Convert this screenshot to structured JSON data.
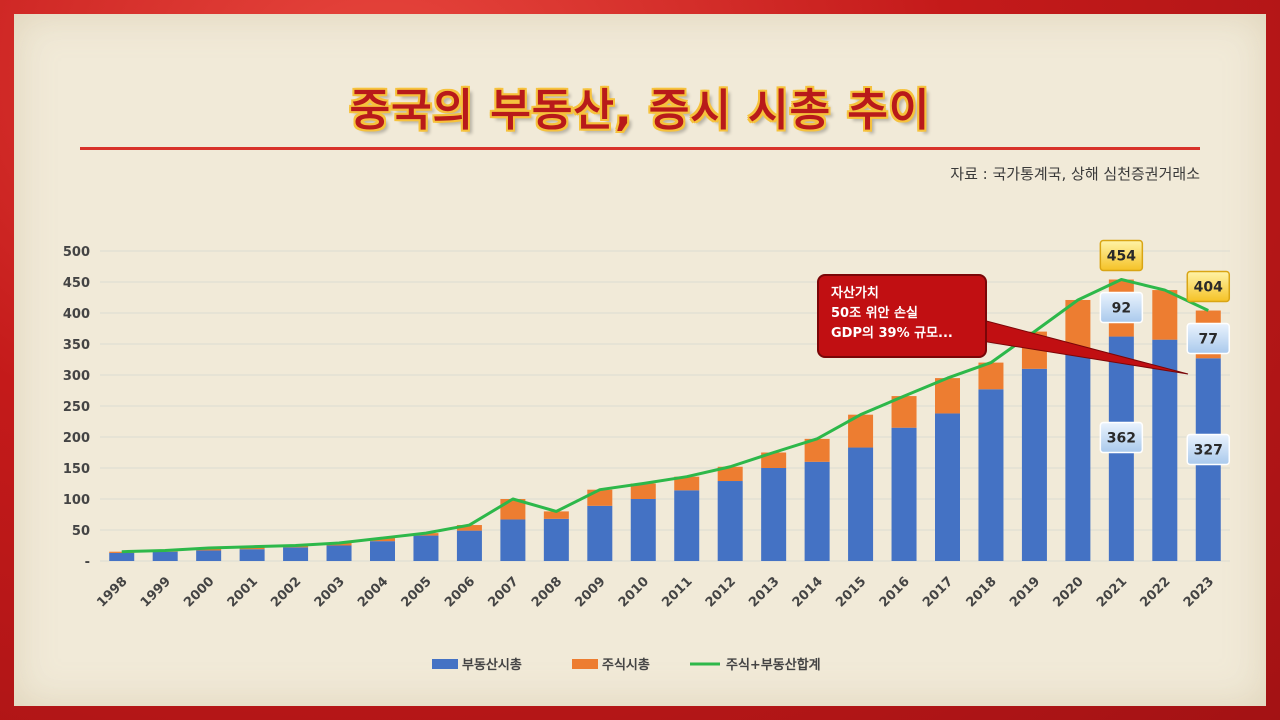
{
  "title": "중국의 부동산, 증시 시총 추이",
  "source": "자료 : 국가통계국, 상해 심천증권거래소",
  "callout": {
    "lines": [
      "자산가치",
      "50조 위안 손실",
      "GDP의 39% 규모..."
    ]
  },
  "colors": {
    "real_estate": "#4472c4",
    "stock": "#ed7d31",
    "total": "#2db84a",
    "frame": "#c8201e",
    "title": "#b81a1a"
  },
  "chart_data": {
    "type": "bar",
    "stacked": true,
    "categories": [
      "1998",
      "1999",
      "2000",
      "2001",
      "2002",
      "2003",
      "2004",
      "2005",
      "2006",
      "2007",
      "2008",
      "2009",
      "2010",
      "2011",
      "2012",
      "2013",
      "2014",
      "2015",
      "2016",
      "2017",
      "2018",
      "2019",
      "2020",
      "2021",
      "2022",
      "2023"
    ],
    "series": [
      {
        "name": "부동산시총",
        "kind": "bar",
        "values": [
          13,
          15,
          17,
          19,
          22,
          25,
          32,
          41,
          49,
          67,
          68,
          89,
          100,
          114,
          129,
          150,
          160,
          183,
          215,
          238,
          277,
          310,
          342,
          362,
          357,
          327
        ]
      },
      {
        "name": "주식시총",
        "kind": "bar",
        "values": [
          2,
          2,
          4,
          4,
          3,
          4,
          5,
          4,
          9,
          33,
          12,
          26,
          25,
          22,
          23,
          25,
          37,
          53,
          51,
          57,
          43,
          60,
          79,
          92,
          80,
          77
        ]
      },
      {
        "name": "주식+부동산합계",
        "kind": "line",
        "values": [
          15,
          17,
          21,
          23,
          25,
          29,
          37,
          45,
          58,
          100,
          80,
          115,
          125,
          136,
          152,
          175,
          197,
          236,
          266,
          295,
          320,
          370,
          421,
          454,
          437,
          404
        ]
      }
    ],
    "y_ticks": [
      "-",
      "50",
      "100",
      "150",
      "200",
      "250",
      "300",
      "350",
      "400",
      "450",
      "500"
    ],
    "ylim": [
      0,
      500
    ],
    "grid": true,
    "legend_position": "bottom",
    "data_labels": [
      {
        "category": "2021",
        "series": "주식+부동산합계",
        "text": "454"
      },
      {
        "category": "2021",
        "series": "주식시총",
        "text": "92"
      },
      {
        "category": "2021",
        "series": "부동산시총",
        "text": "362"
      },
      {
        "category": "2023",
        "series": "주식+부동산합계",
        "text": "404"
      },
      {
        "category": "2023",
        "series": "주식시총",
        "text": "77"
      },
      {
        "category": "2023",
        "series": "부동산시총",
        "text": "327"
      }
    ]
  }
}
